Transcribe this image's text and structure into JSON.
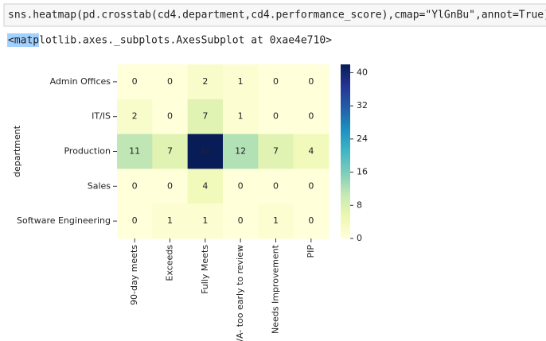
{
  "code": "sns.heatmap(pd.crosstab(cd4.department,cd4.performance_score),cmap=\"YlGnBu\",annot=True)#",
  "output": "<matplotlib.axes._subplots.AxesSubplot at 0xae4e710>",
  "chart_data": {
    "type": "heatmap",
    "ylabel": "department",
    "categories": [
      "90-day meets",
      "Exceeds",
      "Fully Meets",
      "N/A- too early to review",
      "Needs Improvement",
      "PIP"
    ],
    "row_categories": [
      "Admin Offices",
      "IT/IS",
      "Production",
      "Sales",
      "Software Engineering"
    ],
    "values": [
      [
        0,
        0,
        2,
        1,
        0,
        0
      ],
      [
        2,
        0,
        7,
        1,
        0,
        0
      ],
      [
        11,
        7,
        42,
        12,
        7,
        4
      ],
      [
        0,
        0,
        4,
        0,
        0,
        0
      ],
      [
        0,
        1,
        1,
        0,
        1,
        0
      ]
    ],
    "cmap": "YlGnBu",
    "clim": [
      0,
      42
    ],
    "cticks": [
      0,
      8,
      16,
      24,
      32,
      40
    ]
  }
}
